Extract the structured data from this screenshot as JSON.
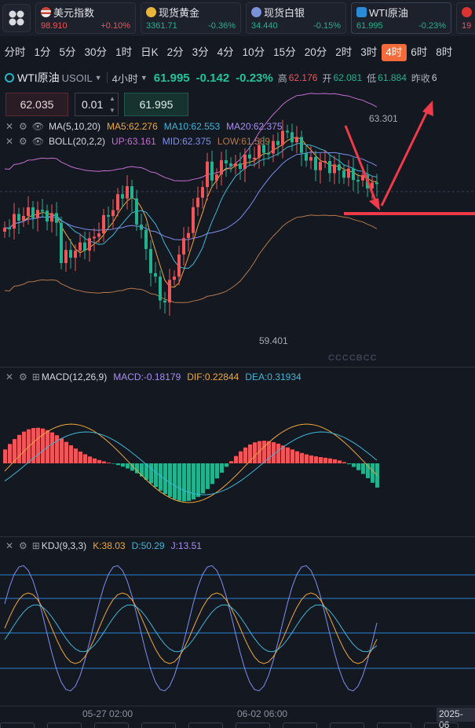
{
  "tickers": [
    {
      "name": "美元指数",
      "price": "98.910",
      "change": "+0.10%",
      "dir": "up",
      "icon_color": "#e6e6e6",
      "icon": "us-flag-icon"
    },
    {
      "name": "现货黄金",
      "price": "3361.71",
      "change": "-0.36%",
      "dir": "down",
      "icon_color": "#e8b43a",
      "icon": "gold-coin-icon"
    },
    {
      "name": "现货白银",
      "price": "34.440",
      "change": "-0.15%",
      "dir": "down",
      "icon_color": "#7a93d8",
      "icon": "silver-coin-icon"
    },
    {
      "name": "WTI原油",
      "price": "61.995",
      "change": "-0.23%",
      "dir": "down",
      "icon_color": "#2a8bd6",
      "icon": "oil-icon"
    },
    {
      "name": "",
      "price": "19",
      "change": "",
      "dir": "up",
      "icon_color": "#e6e6e6",
      "icon": "flag-icon"
    }
  ],
  "timeframes": [
    "分时",
    "1分",
    "5分",
    "30分",
    "1时",
    "日K",
    "2分",
    "3分",
    "4分",
    "10分",
    "15分",
    "20分",
    "2时",
    "3时",
    "4时",
    "6时",
    "8时"
  ],
  "active_timeframe": "4时",
  "symbol": {
    "name": "WTI原油",
    "code": "USOIL",
    "interval": "4小时",
    "price": "61.995",
    "change": "-0.142",
    "change_pct": "-0.23%",
    "high_label": "高",
    "high": "62.176",
    "open_label": "开",
    "open": "62.081",
    "low_label": "低",
    "low": "61.884",
    "prev_label": "昨收",
    "prev": "6"
  },
  "order": {
    "sell_price": "62.035",
    "quantity": "0.01",
    "buy_price": "61.995"
  },
  "main_legend": {
    "ma": {
      "name": "MA(5,10,20)",
      "ma5": "MA5:62.276",
      "ma10": "MA10:62.553",
      "ma20": "MA20:62.375"
    },
    "boll": {
      "name": "BOLL(20,2,2)",
      "up": "UP:63.161",
      "mid": "MID:62.375",
      "low": "LOW:61.589"
    }
  },
  "macd_legend": {
    "name": "MACD(12,26,9)",
    "macd": "MACD:-0.18179",
    "dif": "DIF:0.22844",
    "dea": "DEA:0.31934"
  },
  "kdj_legend": {
    "name": "KDJ(9,3,3)",
    "k": "K:38.03",
    "d": "D:50.29",
    "j": "J:13.51"
  },
  "price_marks": {
    "high": "63.301",
    "low": "59.401"
  },
  "time_labels": [
    "05-27 02:00",
    "06-02 06:00",
    "2025-06"
  ],
  "watermark": "CCCCBCC",
  "colors": {
    "up": "#f0555a",
    "down": "#22b28f",
    "ma5": "#f0a838",
    "ma10": "#3fb6d8",
    "ma20": "#7f8ff0",
    "boll": "#c56fd0",
    "boll_low": "#b6774a",
    "accent": "#f36b3a",
    "arrow": "#ee3a4a"
  }
}
